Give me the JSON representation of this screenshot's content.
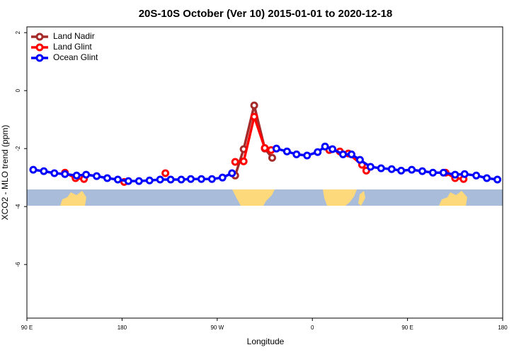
{
  "chart_data": {
    "type": "line",
    "title": "20S-10S October (Ver 10)   2015-01-01 to 2020-12-18",
    "x_label": "Longitude",
    "y_label": "XCO2 - MLO trend (ppm)",
    "xlim": [
      90,
      540
    ],
    "ylim": [
      -7.85,
      2.2
    ],
    "xticks": [
      {
        "value": 90,
        "label": "90 E"
      },
      180,
      {
        "value": 270,
        "label": "90 W"
      },
      {
        "value": 360,
        "label": "0"
      },
      {
        "value": 450,
        "label": "90 E"
      },
      {
        "value": 540,
        "label": "180"
      }
    ],
    "yticks": [
      2,
      0,
      -2,
      -4,
      -6
    ],
    "legend": "topleft",
    "series": [
      {
        "name": "Land Nadir",
        "color": "#a52a2a",
        "x": [
          287,
          295,
          305,
          315,
          322
        ],
        "values": [
          -2.93,
          -2.02,
          -0.51,
          -2.0,
          -2.32
        ]
      },
      {
        "name": "Land Glint",
        "color": "#ff0000",
        "x": [
          126,
          136,
          144,
          null,
          182,
          null,
          221,
          null,
          287,
          295,
          305,
          315,
          321,
          null,
          376,
          386,
          394,
          407,
          411,
          null,
          486,
          495,
          503
        ],
        "values": [
          -2.83,
          -3.02,
          -3.05,
          null,
          -3.15,
          null,
          -2.85,
          null,
          -2.46,
          -2.44,
          -0.9,
          -1.98,
          -2.05,
          null,
          -2.05,
          -2.1,
          -2.17,
          -2.56,
          -2.76,
          null,
          -2.83,
          -3.02,
          -3.05
        ]
      },
      {
        "name": "Ocean Glint",
        "color": "#0000ff",
        "x": [
          96,
          106,
          116,
          126,
          137,
          146,
          156,
          166,
          176,
          186,
          196,
          206,
          216,
          226,
          236,
          245,
          255,
          265,
          275,
          284,
          null,
          326,
          336,
          345,
          355,
          365,
          372,
          379,
          389,
          397,
          405,
          415,
          425,
          435,
          444,
          454,
          464,
          474,
          484,
          495,
          504,
          515,
          525,
          535
        ],
        "values": [
          -2.73,
          -2.78,
          -2.85,
          -2.88,
          -2.93,
          -2.9,
          -2.95,
          -3.02,
          -3.07,
          -3.12,
          -3.12,
          -3.1,
          -3.07,
          -3.07,
          -3.07,
          -3.05,
          -3.05,
          -3.05,
          -3.0,
          -2.85,
          null,
          -2.0,
          -2.1,
          -2.2,
          -2.24,
          -2.12,
          -1.93,
          -2.02,
          -2.2,
          -2.2,
          -2.39,
          -2.63,
          -2.68,
          -2.71,
          -2.76,
          -2.73,
          -2.78,
          -2.83,
          -2.83,
          -2.9,
          -2.88,
          -2.93,
          -3.02,
          -3.07
        ]
      }
    ]
  }
}
